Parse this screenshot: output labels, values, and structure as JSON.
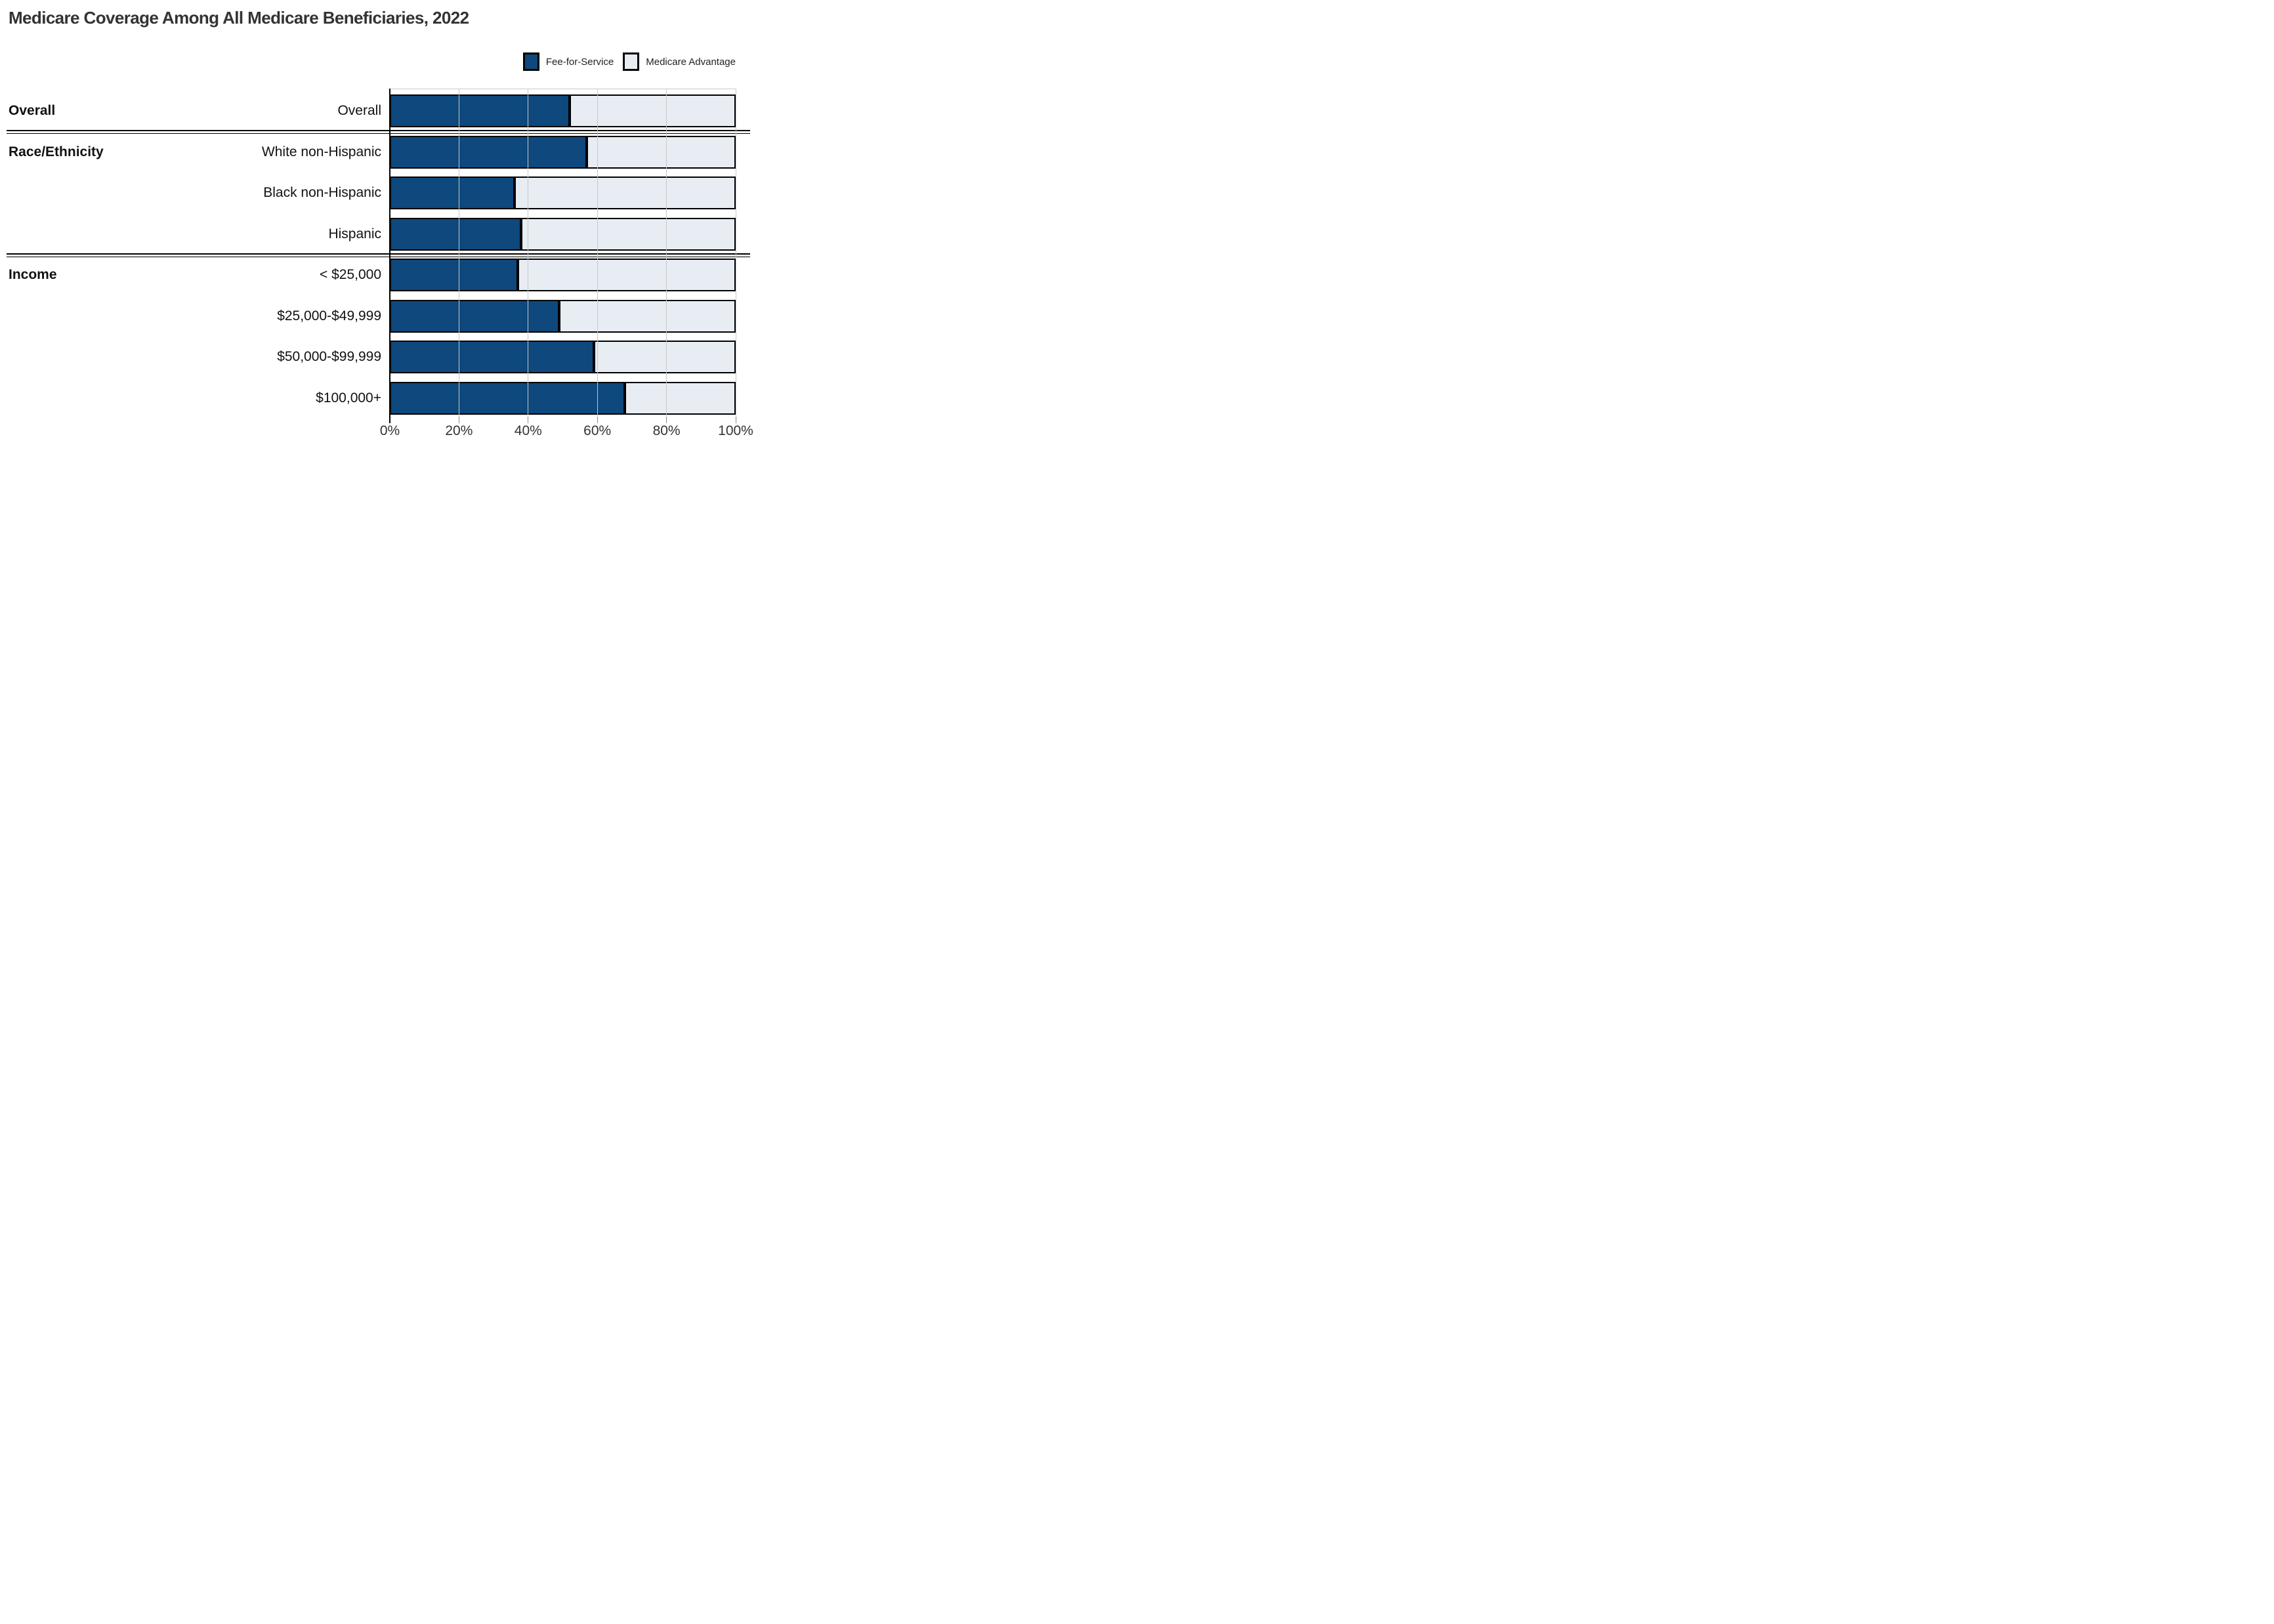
{
  "title": "Medicare Coverage Among All Medicare Beneficiaries, 2022",
  "legend": {
    "items": [
      {
        "label": "Fee-for-Service",
        "color": "#0e487d"
      },
      {
        "label": "Medicare Advantage",
        "color": "#e8ecf3"
      }
    ]
  },
  "chart_data": {
    "type": "bar",
    "orientation": "horizontal",
    "stacked": true,
    "unit": "percent of beneficiaries",
    "title": "Medicare Coverage Among All Medicare Beneficiaries, 2022",
    "sections": [
      {
        "label": "Overall",
        "rows": [
          "Overall"
        ]
      },
      {
        "label": "Race/Ethnicity",
        "rows": [
          "White non-Hispanic",
          "Black non-Hispanic",
          "Hispanic"
        ]
      },
      {
        "label": "Income",
        "rows": [
          "< $25,000",
          "$25,000-$49,999",
          "$50,000-$99,999",
          "$100,000+"
        ]
      }
    ],
    "categories": [
      "Overall",
      "White non-Hispanic",
      "Black non-Hispanic",
      "Hispanic",
      "< $25,000",
      "$25,000-$49,999",
      "$50,000-$99,999",
      "$100,000+"
    ],
    "series": [
      {
        "name": "Fee-for-Service",
        "color": "#0e487d",
        "values": [
          52,
          57,
          36,
          38,
          37,
          49,
          59,
          68
        ]
      },
      {
        "name": "Medicare Advantage",
        "color": "#e8ecf3",
        "values": [
          48,
          43,
          64,
          62,
          63,
          51,
          41,
          32
        ]
      }
    ],
    "x_ticks": [
      "0%",
      "20%",
      "40%",
      "60%",
      "80%",
      "100%"
    ],
    "xlim": [
      0,
      100
    ],
    "grid": "vertical",
    "legend_position": "top-right",
    "bar_outline_color": "#000000"
  }
}
